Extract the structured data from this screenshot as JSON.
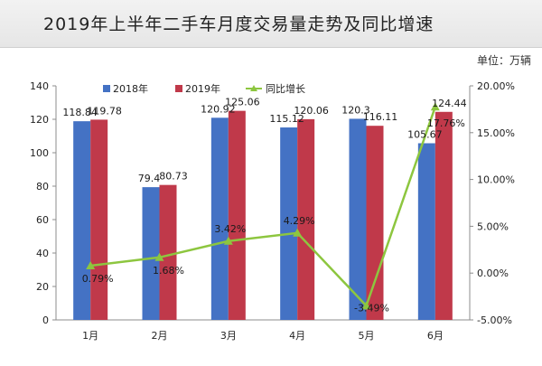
{
  "colors": {
    "series_2018": "#4472c4",
    "series_2019": "#c0394a",
    "growth": "#8dc63f",
    "title_bg": "#ececec"
  },
  "chart_data": {
    "type": "bar",
    "title": "2019年上半年二手车月度交易量走势及同比增速",
    "unit_label": "单位：万辆",
    "categories": [
      "1月",
      "2月",
      "3月",
      "4月",
      "5月",
      "6月"
    ],
    "series": [
      {
        "name": "2018年",
        "type": "bar",
        "axis": "left",
        "values": [
          118.84,
          79.4,
          120.92,
          115.12,
          120.3,
          105.67
        ],
        "labels": [
          "118.84",
          "79.4",
          "120.92",
          "115.12",
          "120.3",
          "105.67"
        ]
      },
      {
        "name": "2019年",
        "type": "bar",
        "axis": "left",
        "values": [
          119.78,
          80.73,
          125.06,
          120.06,
          116.11,
          124.44
        ],
        "labels": [
          "119.78",
          "80.73",
          "125.06",
          "120.06",
          "116.11",
          "124.44"
        ]
      },
      {
        "name": "同比增长",
        "type": "line",
        "axis": "right",
        "values": [
          0.79,
          1.68,
          3.42,
          4.29,
          -3.49,
          17.76
        ],
        "labels": [
          "0.79%",
          "1.68%",
          "3.42%",
          "4.29%",
          "-3.49%",
          "17.76%"
        ]
      }
    ],
    "ylim": [
      0,
      140
    ],
    "y_ticks": [
      "0",
      "20",
      "40",
      "60",
      "80",
      "100",
      "120",
      "140"
    ],
    "y2lim": [
      -5,
      20
    ],
    "y2_ticks": [
      "-5.00%",
      "0.00%",
      "5.00%",
      "10.00%",
      "15.00%",
      "20.00%"
    ],
    "grid": false,
    "legend_position": "top"
  }
}
